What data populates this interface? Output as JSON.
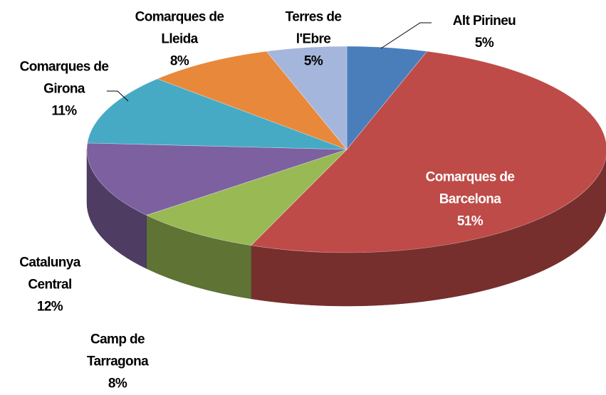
{
  "chart_data": {
    "type": "pie3d",
    "categories": [
      "Alt Pirineu",
      "Comarques de Barcelona",
      "Camp de Tarragona",
      "Catalunya Central",
      "Comarques de Girona",
      "Comarques de Lleida",
      "Terres de l'Ebre"
    ],
    "values": [
      5,
      51,
      8,
      12,
      11,
      8,
      5
    ],
    "value_labels": [
      "5%",
      "51%",
      "8%",
      "12%",
      "11%",
      "8%",
      "5%"
    ],
    "colors": [
      "#4a7ebb",
      "#be4b48",
      "#98b954",
      "#7d60a0",
      "#46aac5",
      "#e8883a",
      "#a5b6dc"
    ]
  }
}
